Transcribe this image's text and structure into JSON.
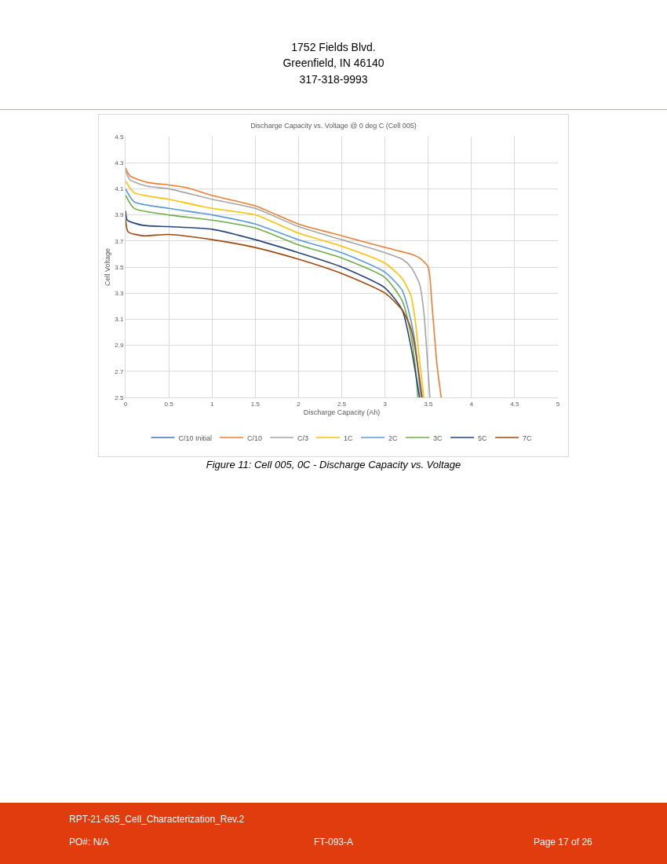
{
  "chart_data": {
    "type": "line",
    "title": "Discharge Capacity vs. Voltage @ 0 deg C (Cell 005)",
    "xlabel": "Discharge Capacity (Ah)",
    "ylabel": "Cell Voltage",
    "xlim": [
      0,
      5
    ],
    "xticks": [
      0,
      0.5,
      1,
      1.5,
      2,
      2.5,
      3,
      3.5,
      4,
      4.5,
      5
    ],
    "ylim": [
      2.5,
      4.5
    ],
    "yticks": [
      2.5,
      2.7,
      2.9,
      3.1,
      3.3,
      3.5,
      3.7,
      3.9,
      4.1,
      4.3,
      4.5
    ],
    "grid": true,
    "legend": "bottom",
    "marker": "none",
    "line_style": "solid",
    "series": [
      {
        "name": "C/10 Initial",
        "color": "#4472c4",
        "values": [
          null
        ]
      },
      {
        "name": "C/10",
        "color": "#ed7d31",
        "x": [
          0,
          0.05,
          0.25,
          0.5,
          0.7,
          1.0,
          1.25,
          1.5,
          1.75,
          2.0,
          2.5,
          3.0,
          3.3,
          3.4,
          3.5,
          3.54,
          3.6,
          3.65
        ],
        "values": [
          4.26,
          4.2,
          4.15,
          4.13,
          4.11,
          4.05,
          4.01,
          3.97,
          3.9,
          3.83,
          3.74,
          3.65,
          3.6,
          3.57,
          3.5,
          3.24,
          2.76,
          2.5
        ]
      },
      {
        "name": "C/3",
        "color": "#a5a5a5",
        "x": [
          0,
          0.05,
          0.25,
          0.5,
          1.0,
          1.5,
          2.0,
          2.5,
          3.0,
          3.2,
          3.3,
          3.4,
          3.45,
          3.5,
          3.52
        ],
        "values": [
          4.24,
          4.17,
          4.12,
          4.1,
          4.02,
          3.95,
          3.81,
          3.71,
          3.61,
          3.56,
          3.5,
          3.37,
          3.15,
          2.69,
          2.5
        ]
      },
      {
        "name": "1C",
        "color": "#ffc000",
        "x": [
          0,
          0.1,
          0.5,
          1.0,
          1.5,
          2.0,
          2.5,
          3.0,
          3.2,
          3.3,
          3.35,
          3.4,
          3.45
        ],
        "values": [
          4.16,
          4.07,
          4.02,
          3.95,
          3.9,
          3.76,
          3.66,
          3.53,
          3.41,
          3.28,
          3.09,
          2.78,
          2.5
        ]
      },
      {
        "name": "2C",
        "color": "#5b9bd5",
        "x": [
          0,
          0.1,
          0.5,
          1.0,
          1.5,
          2.0,
          2.5,
          3.0,
          3.2,
          3.3,
          3.35,
          3.4,
          3.42
        ],
        "values": [
          4.1,
          4.0,
          3.95,
          3.9,
          3.83,
          3.71,
          3.61,
          3.46,
          3.32,
          3.09,
          2.91,
          2.59,
          2.5
        ]
      },
      {
        "name": "3C",
        "color": "#70ad47",
        "x": [
          0,
          0.1,
          0.5,
          1.0,
          1.5,
          2.0,
          2.5,
          3.0,
          3.2,
          3.3,
          3.35,
          3.38
        ],
        "values": [
          4.05,
          3.95,
          3.9,
          3.86,
          3.8,
          3.67,
          3.57,
          3.42,
          3.24,
          2.98,
          2.74,
          2.5
        ]
      },
      {
        "name": "5C",
        "color": "#264478",
        "x": [
          0,
          0.02,
          0.2,
          0.5,
          1.0,
          1.5,
          2.0,
          2.5,
          3.0,
          3.2,
          3.3,
          3.4
        ],
        "values": [
          3.93,
          3.86,
          3.82,
          3.81,
          3.79,
          3.71,
          3.61,
          3.5,
          3.34,
          3.17,
          2.89,
          2.5
        ]
      },
      {
        "name": "7C",
        "color": "#9e480e",
        "x": [
          0,
          0.03,
          0.2,
          0.5,
          1.0,
          1.5,
          2.0,
          2.5,
          3.0,
          3.2,
          3.3,
          3.35,
          3.43
        ],
        "values": [
          3.87,
          3.77,
          3.74,
          3.75,
          3.71,
          3.65,
          3.56,
          3.45,
          3.3,
          3.17,
          3.03,
          2.87,
          2.5
        ]
      }
    ],
    "annotations": [
      "1752 Fields Blvd.",
      "Greenfield, IN  46140",
      "317-318-9993",
      "Figure 11: Cell 005, 0C - Discharge Capacity vs. Voltage",
      "RPT-21-635_Cell_Characterization_Rev.2",
      "PO#: N/A",
      "FT-093-A",
      "Page 17 of 26"
    ]
  }
}
